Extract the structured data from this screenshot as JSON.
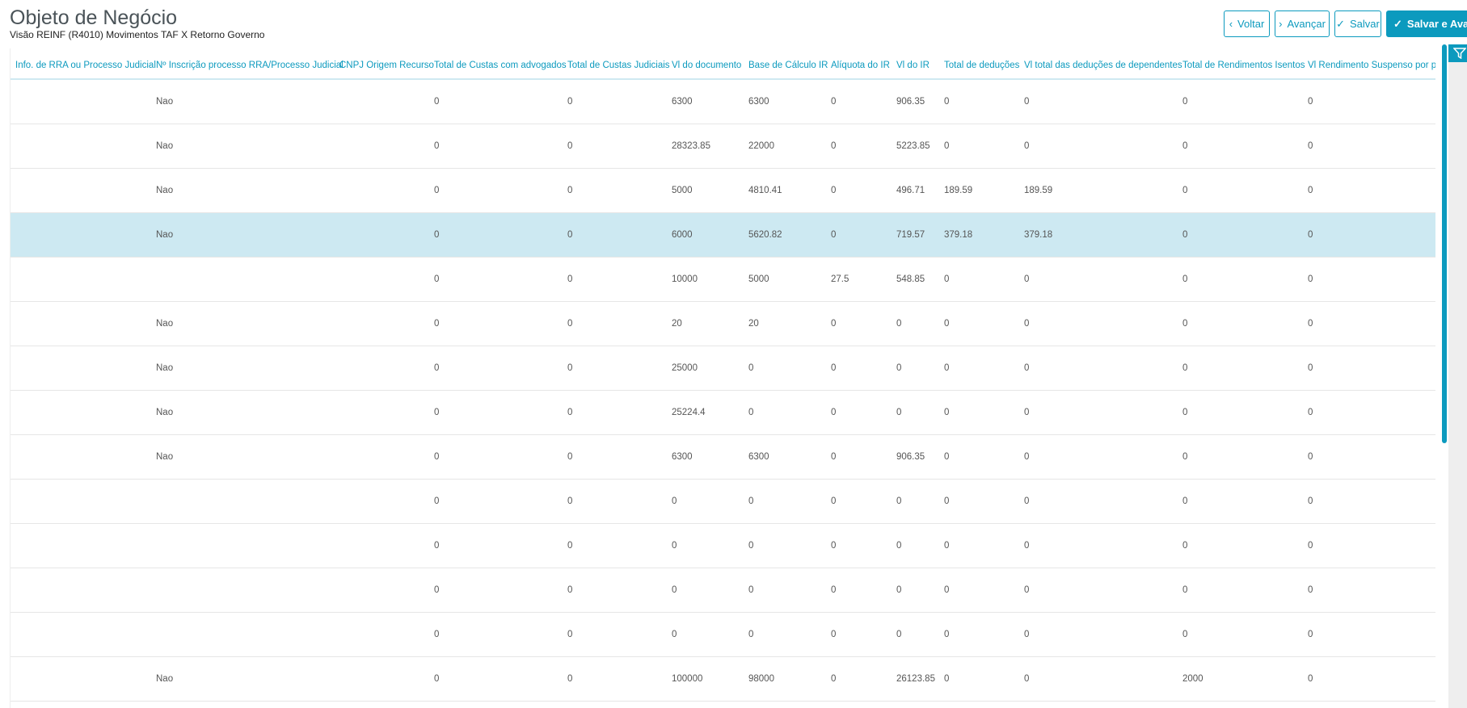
{
  "header": {
    "title": "Objeto de Negócio",
    "subtitle": "Visão REINF (R4010) Movimentos TAF X Retorno Governo"
  },
  "toolbar": {
    "back": "Voltar",
    "next": "Avançar",
    "save": "Salvar",
    "save_next": "Salvar e Avançar"
  },
  "colors": {
    "accent": "#0c9abe",
    "selected_row": "#cde9f2"
  },
  "table": {
    "columns": [
      "Info. de RRA ou Processo Judicial",
      "Nº Inscrição processo RRA/Processo Judicial",
      "CNPJ Origem Recurso",
      "Total de Custas com advogados",
      "Total de Custas Judiciais",
      "Vl do documento",
      "Base de Cálculo IR",
      "Alíquota do IR",
      "Vl do IR",
      "Total de deduções",
      "Vl total das deduções de dependentes",
      "Total de Rendimentos Isentos",
      "Vl Rendimento Suspenso por pro"
    ],
    "selected_row": 3,
    "rows": [
      [
        "",
        "Nao",
        "",
        "0",
        "0",
        "6300",
        "6300",
        "0",
        "906.35",
        "0",
        "0",
        "0",
        "0"
      ],
      [
        "",
        "Nao",
        "",
        "0",
        "0",
        "28323.85",
        "22000",
        "0",
        "5223.85",
        "0",
        "0",
        "0",
        "0"
      ],
      [
        "",
        "Nao",
        "",
        "0",
        "0",
        "5000",
        "4810.41",
        "0",
        "496.71",
        "189.59",
        "189.59",
        "0",
        "0"
      ],
      [
        "",
        "Nao",
        "",
        "0",
        "0",
        "6000",
        "5620.82",
        "0",
        "719.57",
        "379.18",
        "379.18",
        "0",
        "0"
      ],
      [
        "",
        "",
        "",
        "0",
        "0",
        "10000",
        "5000",
        "27.5",
        "548.85",
        "0",
        "0",
        "0",
        "0"
      ],
      [
        "",
        "Nao",
        "",
        "0",
        "0",
        "20",
        "20",
        "0",
        "0",
        "0",
        "0",
        "0",
        "0"
      ],
      [
        "",
        "Nao",
        "",
        "0",
        "0",
        "25000",
        "0",
        "0",
        "0",
        "0",
        "0",
        "0",
        "0"
      ],
      [
        "",
        "Nao",
        "",
        "0",
        "0",
        "25224.4",
        "0",
        "0",
        "0",
        "0",
        "0",
        "0",
        "0"
      ],
      [
        "",
        "Nao",
        "",
        "0",
        "0",
        "6300",
        "6300",
        "0",
        "906.35",
        "0",
        "0",
        "0",
        "0"
      ],
      [
        "",
        "",
        "",
        "0",
        "0",
        "0",
        "0",
        "0",
        "0",
        "0",
        "0",
        "0",
        "0"
      ],
      [
        "",
        "",
        "",
        "0",
        "0",
        "0",
        "0",
        "0",
        "0",
        "0",
        "0",
        "0",
        "0"
      ],
      [
        "",
        "",
        "",
        "0",
        "0",
        "0",
        "0",
        "0",
        "0",
        "0",
        "0",
        "0",
        "0"
      ],
      [
        "",
        "",
        "",
        "0",
        "0",
        "0",
        "0",
        "0",
        "0",
        "0",
        "0",
        "0",
        "0"
      ],
      [
        "",
        "Nao",
        "",
        "0",
        "0",
        "100000",
        "98000",
        "0",
        "26123.85",
        "0",
        "0",
        "2000",
        "0"
      ]
    ]
  }
}
